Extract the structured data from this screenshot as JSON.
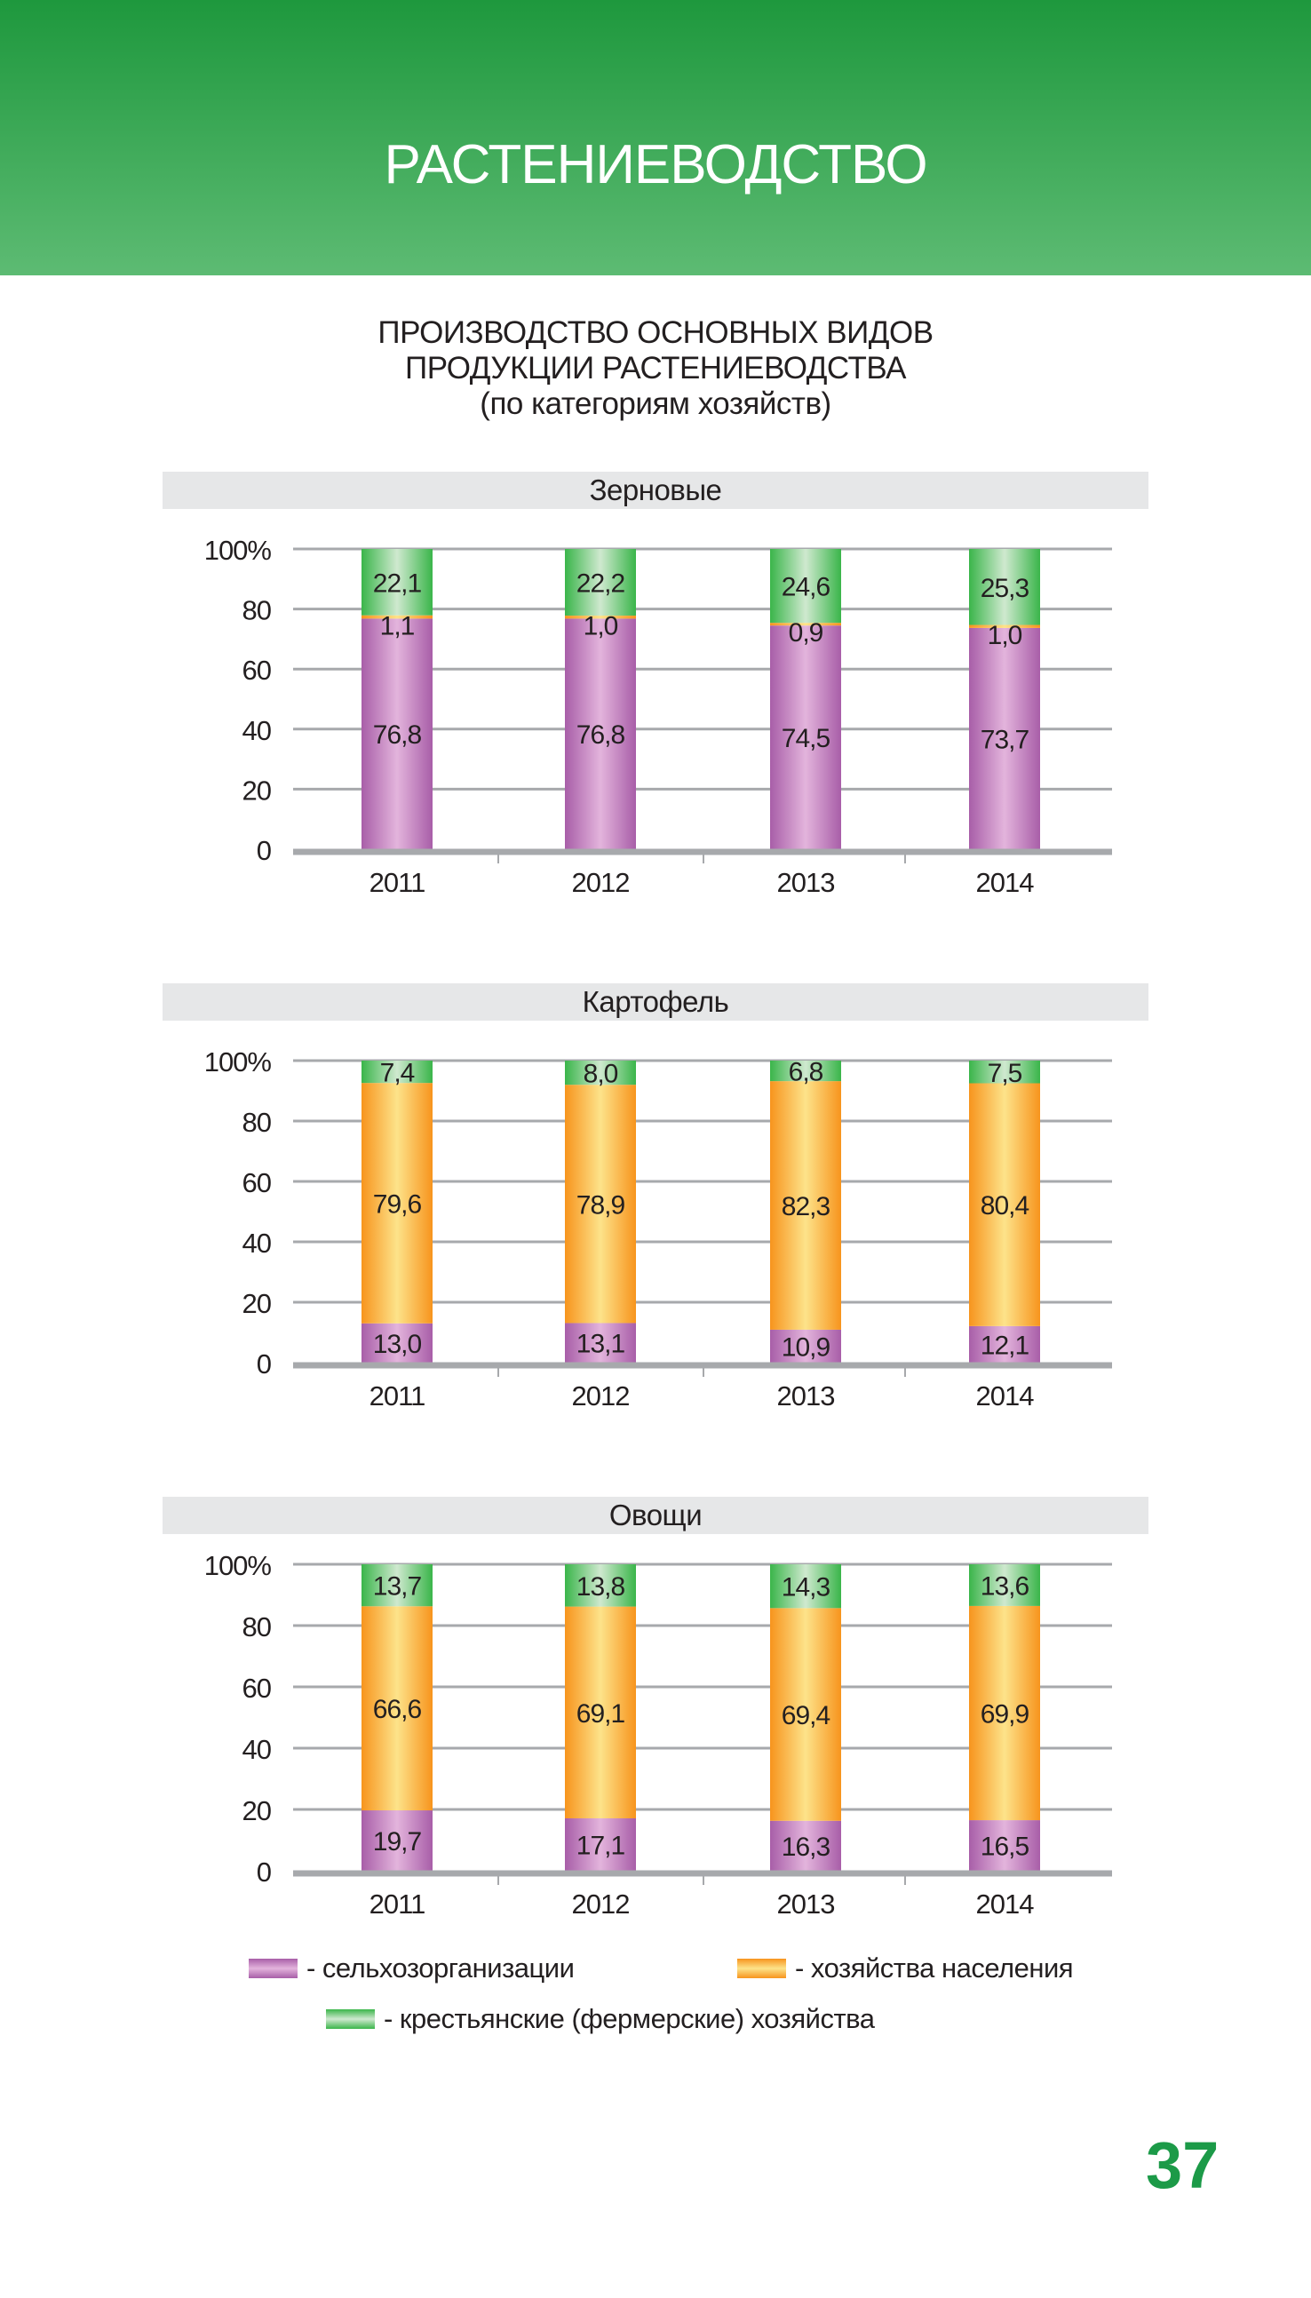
{
  "header": {
    "title": "РАСТЕНИЕВОДСТВО"
  },
  "main_title": {
    "line1": "ПРОИЗВОДСТВО ОСНОВНЫХ ВИДОВ",
    "line2": "ПРОДУКЦИИ РАСТЕНИЕВОДСТВА",
    "line3": "(по категориям хозяйств)"
  },
  "colors": {
    "header": "#2a9f48",
    "org": "#a85ea8",
    "households": "#f7941d",
    "farms": "#3ab54a",
    "page_number": "#1c9a48"
  },
  "chart_data": [
    {
      "type": "bar",
      "stacked": true,
      "title": "Зерновые",
      "categories": [
        "2011",
        "2012",
        "2013",
        "2014"
      ],
      "ylim": [
        0,
        100
      ],
      "yticks": [
        "0",
        "20",
        "40",
        "60",
        "80",
        "100%"
      ],
      "grid": true,
      "series": [
        {
          "name": "- сельхозорганизации",
          "values": [
            "76,8",
            "76,8",
            "74,5",
            "73,7"
          ]
        },
        {
          "name": "- хозяйства населения",
          "values": [
            "1,1",
            "1,0",
            "0,9",
            "1,0"
          ]
        },
        {
          "name": "- крестьянские (фермерские) хозяйства",
          "values": [
            "22,1",
            "22,2",
            "24,6",
            "25,3"
          ]
        }
      ]
    },
    {
      "type": "bar",
      "stacked": true,
      "title": "Картофель",
      "categories": [
        "2011",
        "2012",
        "2013",
        "2014"
      ],
      "ylim": [
        0,
        100
      ],
      "yticks": [
        "0",
        "20",
        "40",
        "60",
        "80",
        "100%"
      ],
      "grid": true,
      "series": [
        {
          "name": "- сельхозорганизации",
          "values": [
            "13,0",
            "13,1",
            "10,9",
            "12,1"
          ]
        },
        {
          "name": "- хозяйства населения",
          "values": [
            "79,6",
            "78,9",
            "82,3",
            "80,4"
          ]
        },
        {
          "name": "- крестьянские (фермерские) хозяйства",
          "values": [
            "7,4",
            "8,0",
            "6,8",
            "7,5"
          ]
        }
      ]
    },
    {
      "type": "bar",
      "stacked": true,
      "title": "Овощи",
      "categories": [
        "2011",
        "2012",
        "2013",
        "2014"
      ],
      "ylim": [
        0,
        100
      ],
      "yticks": [
        "0",
        "20",
        "40",
        "60",
        "80",
        "100%"
      ],
      "grid": true,
      "series": [
        {
          "name": "- сельхозорганизации",
          "values": [
            "19,7",
            "17,1",
            "16,3",
            "16,5"
          ]
        },
        {
          "name": "- хозяйства населения",
          "values": [
            "66,6",
            "69,1",
            "69,4",
            "69,9"
          ]
        },
        {
          "name": "- крестьянские (фермерские) хозяйства",
          "values": [
            "13,7",
            "13,8",
            "14,3",
            "13,6"
          ]
        }
      ]
    }
  ],
  "legend": {
    "org": "- сельхозорганизации",
    "households": "- хозяйства населения",
    "farms": "- крестьянские (фермерские) хозяйства",
    "placement": "bottom"
  },
  "page_number": "37"
}
